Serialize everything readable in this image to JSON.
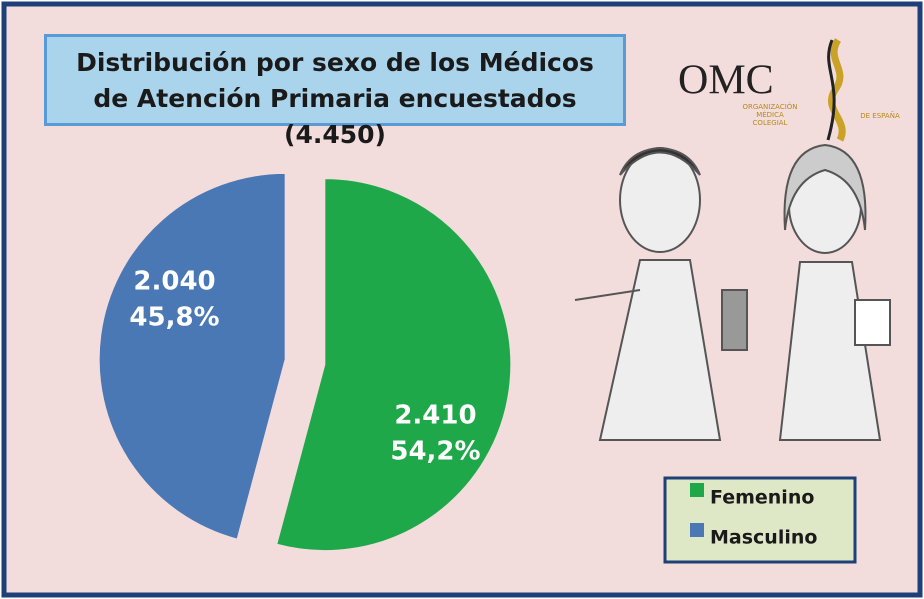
{
  "chart_data": {
    "type": "pie",
    "title": "Distribución por sexo de los Médicos de Atención Primaria encuestados (4.450)",
    "categories": [
      "Femenino",
      "Masculino"
    ],
    "values": [
      2410,
      2040
    ],
    "value_labels": [
      "2.410",
      "2.040"
    ],
    "percentages": [
      54.2,
      45.8
    ],
    "percentage_labels": [
      "54,2%",
      "45,8%"
    ],
    "colors": [
      "#1fa84a",
      "#4a78b5"
    ],
    "legend": "lower-right"
  },
  "logo": {
    "text": "OMC",
    "lines": [
      "ORGANIZACIÓN",
      "MÉDICA",
      "COLEGIAL",
      "DE ESPAÑA"
    ]
  }
}
